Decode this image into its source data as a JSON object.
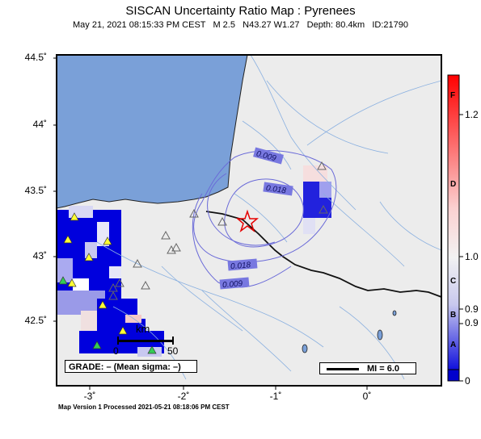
{
  "header": {
    "title": "SISCAN Uncertainty Ratio Map : Pyrenees",
    "subtitle": "May 21, 2021 08:15:33 PM CEST   M 2.5   N43.27 W1.27   Depth: 80.4km   ID:21790"
  },
  "axes": {
    "y_ticks": [
      "44.5˚",
      "44˚",
      "43.5˚",
      "43˚",
      "42.5˚"
    ],
    "x_ticks": [
      "-3˚",
      "-2˚",
      "-1˚",
      "0˚"
    ]
  },
  "colorbar": {
    "tick_labels": [
      "1.2",
      "1.0",
      "0.9",
      "0.9",
      "0"
    ],
    "grade_letters": [
      "F",
      "D",
      "C",
      "B",
      "A"
    ],
    "top_color": "#ff0000",
    "mid_color": "#f2f2f2",
    "bottom_color": "#0000cc"
  },
  "map": {
    "ocean_color": "#7aa0d8",
    "land_color": "#ececec",
    "contour_labels": [
      "0.009",
      "0.018",
      "0.018",
      "0.009"
    ],
    "epicenter_color": "#e60000",
    "station_triangle_color": "#ffff33"
  },
  "legend": {
    "grade_text": "GRADE: – (Mean sigma: –)",
    "mi_text": "MI = 6.0",
    "scale_unit": "km",
    "scale_zero": "0",
    "scale_max": "50"
  },
  "footer": {
    "text": "Map Version 1 Processed 2021-05-21 08:18:06 PM CEST"
  }
}
